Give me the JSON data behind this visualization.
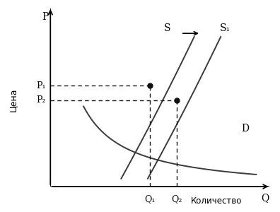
{
  "ylabel": "Цена",
  "xlabel": "Количество",
  "p_label": "P",
  "q_label": "Q",
  "s_label": "S",
  "s1_label": "S₁",
  "d_label": "D",
  "p1_label": "P₁",
  "p2_label": "P₂",
  "q1_label": "Q₁",
  "q2_label": "Q₂",
  "line_color": "#3a3a3a",
  "dashed_color": "#1a1a1a",
  "dot_color": "#111111",
  "background_color": "#ffffff",
  "xlim": [
    0,
    10
  ],
  "ylim": [
    0,
    10
  ],
  "eq1": [
    4.5,
    5.6
  ],
  "eq2": [
    5.7,
    4.8
  ]
}
